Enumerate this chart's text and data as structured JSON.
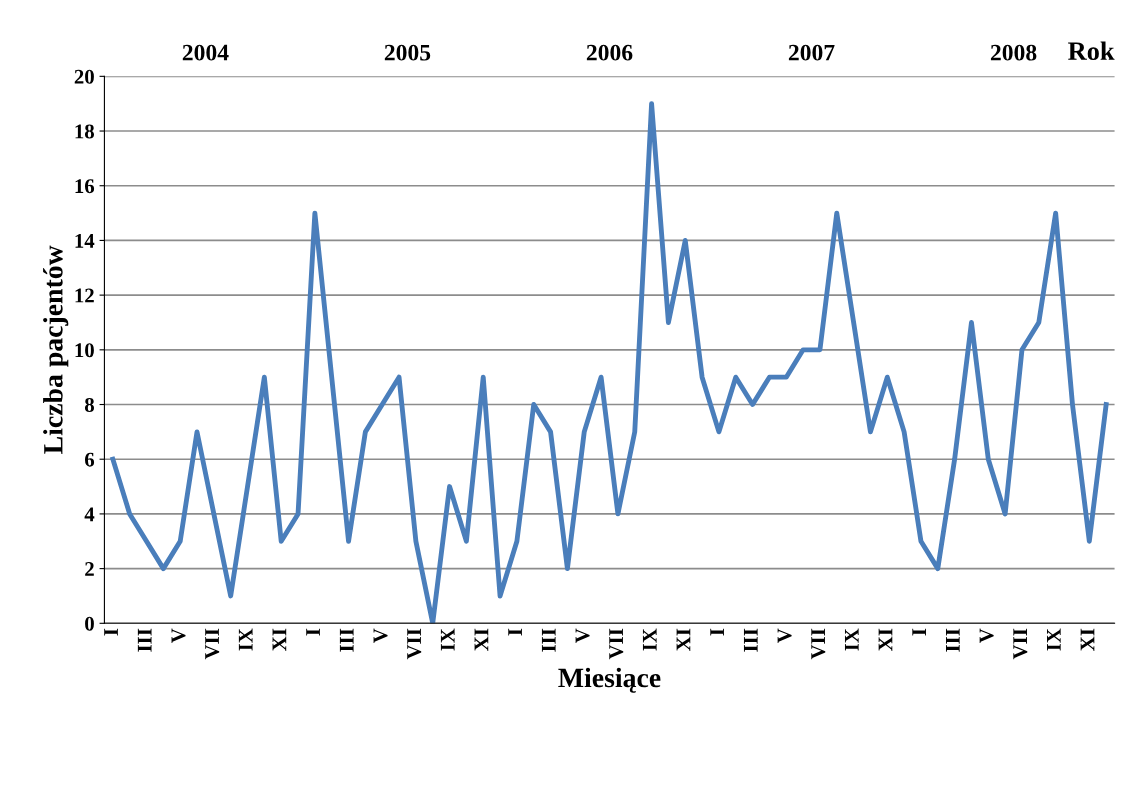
{
  "chart_data": {
    "type": "line",
    "xlabel": "Miesiące",
    "ylabel": "Liczba pacjentów",
    "categories": [
      "I",
      null,
      "III",
      null,
      "V",
      null,
      "VII",
      null,
      "IX",
      null,
      "XI",
      null,
      "I",
      null,
      "III",
      null,
      "V",
      null,
      "VII",
      null,
      "IX",
      null,
      "XI",
      null,
      "I",
      null,
      "III",
      null,
      "V",
      null,
      "VII",
      null,
      "IX",
      null,
      "XI",
      null,
      "I",
      null,
      "III",
      null,
      "V",
      null,
      "VII",
      null,
      "IX",
      null,
      "XI",
      null,
      "I",
      null,
      "III",
      null,
      "V",
      null,
      "VII",
      null,
      "IX",
      null,
      "XI",
      null
    ],
    "series": [
      {
        "color": "#4a7ebb",
        "values": [
          6,
          4,
          3,
          2,
          3,
          7,
          4,
          1,
          5,
          9,
          3,
          4,
          15,
          9,
          3,
          7,
          8,
          9,
          3,
          0,
          5,
          3,
          9,
          1,
          3,
          8,
          7,
          2,
          7,
          9,
          4,
          7,
          19,
          11,
          14,
          9,
          7,
          9,
          8,
          9,
          9,
          10,
          10,
          15,
          11,
          7,
          9,
          7,
          3,
          2,
          6,
          11,
          6,
          4,
          10,
          11,
          15,
          8,
          3,
          8
        ]
      }
    ],
    "ylim": [
      0,
      20
    ],
    "yticks": [
      0,
      2,
      4,
      6,
      8,
      10,
      12,
      14,
      16,
      18,
      20
    ],
    "grid": "y",
    "marker": "none",
    "line_style": "solid",
    "legend": false,
    "annotations": [
      "2004",
      "2005",
      "2006",
      "2007",
      "2008",
      "Rok"
    ]
  }
}
